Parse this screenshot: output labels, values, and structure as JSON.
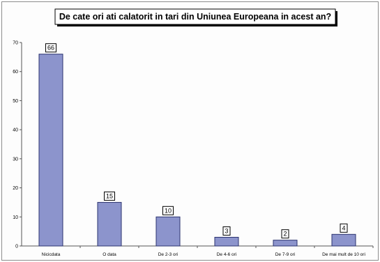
{
  "chart_data": {
    "type": "bar",
    "title": "De cate ori ati calatorit in tari din Uniunea Europeana in acest an?",
    "xlabel": "",
    "ylabel": "",
    "categories": [
      "Nicicdata",
      "O data",
      "De 2-3 ori",
      "De 4-6 ori",
      "De 7-9 ori",
      "De mai mult de 10 ori"
    ],
    "values": [
      66,
      15,
      10,
      3,
      2,
      4
    ],
    "data_labels": [
      "66",
      "15",
      "10",
      "3",
      "2",
      "4"
    ],
    "ylim": [
      0,
      70
    ],
    "yticks": [
      0,
      10,
      20,
      30,
      40,
      50,
      60,
      70
    ],
    "grid": false,
    "legend": "none",
    "colors": {
      "bar_fill": "#8c94cc",
      "bar_stroke": "#2c3470",
      "axis": "#555555",
      "title_border": "#000000"
    }
  }
}
